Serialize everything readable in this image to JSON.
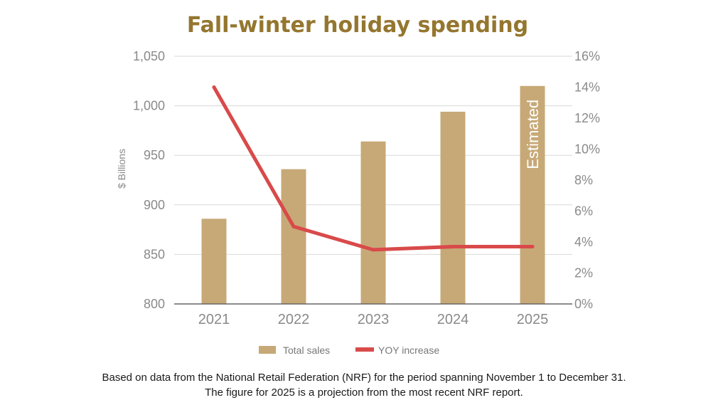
{
  "chart_data": {
    "type": "bar",
    "title": "Fall-winter holiday spending",
    "ylabel": "$ Billions",
    "categories": [
      "2021",
      "2022",
      "2023",
      "2024",
      "2025"
    ],
    "ylim": [
      800,
      1050
    ],
    "y_ticks": [
      "800",
      "850",
      "900",
      "950",
      "1,000",
      "1,050"
    ],
    "y2lim": [
      0,
      16
    ],
    "y2_ticks": [
      "0%",
      "2%",
      "4%",
      "6%",
      "8%",
      "10%",
      "12%",
      "14%",
      "16%"
    ],
    "series": [
      {
        "name": "Total sales",
        "type": "bar",
        "axis": "left",
        "values": [
          886,
          936,
          964,
          994,
          1020
        ]
      },
      {
        "name": "YOY increase",
        "type": "line",
        "axis": "right",
        "values": [
          14.0,
          5.0,
          3.5,
          3.7,
          3.7
        ]
      }
    ],
    "annotation": "Estimated",
    "legend_position": "bottom",
    "grid": true
  },
  "colors": {
    "title": "#94762f",
    "bar": "#c7a977",
    "line": "#d94a4a",
    "grid": "#d9d9d9",
    "axis": "#666666",
    "tick_text": "#8a8a8a",
    "annotation": "#ffffff"
  },
  "caption": {
    "line1": "Based on data from the National Retail Federation (NRF) for the period spanning November 1 to December 31.",
    "line2": "The figure for 2025 is a projection from the most recent NRF report."
  }
}
